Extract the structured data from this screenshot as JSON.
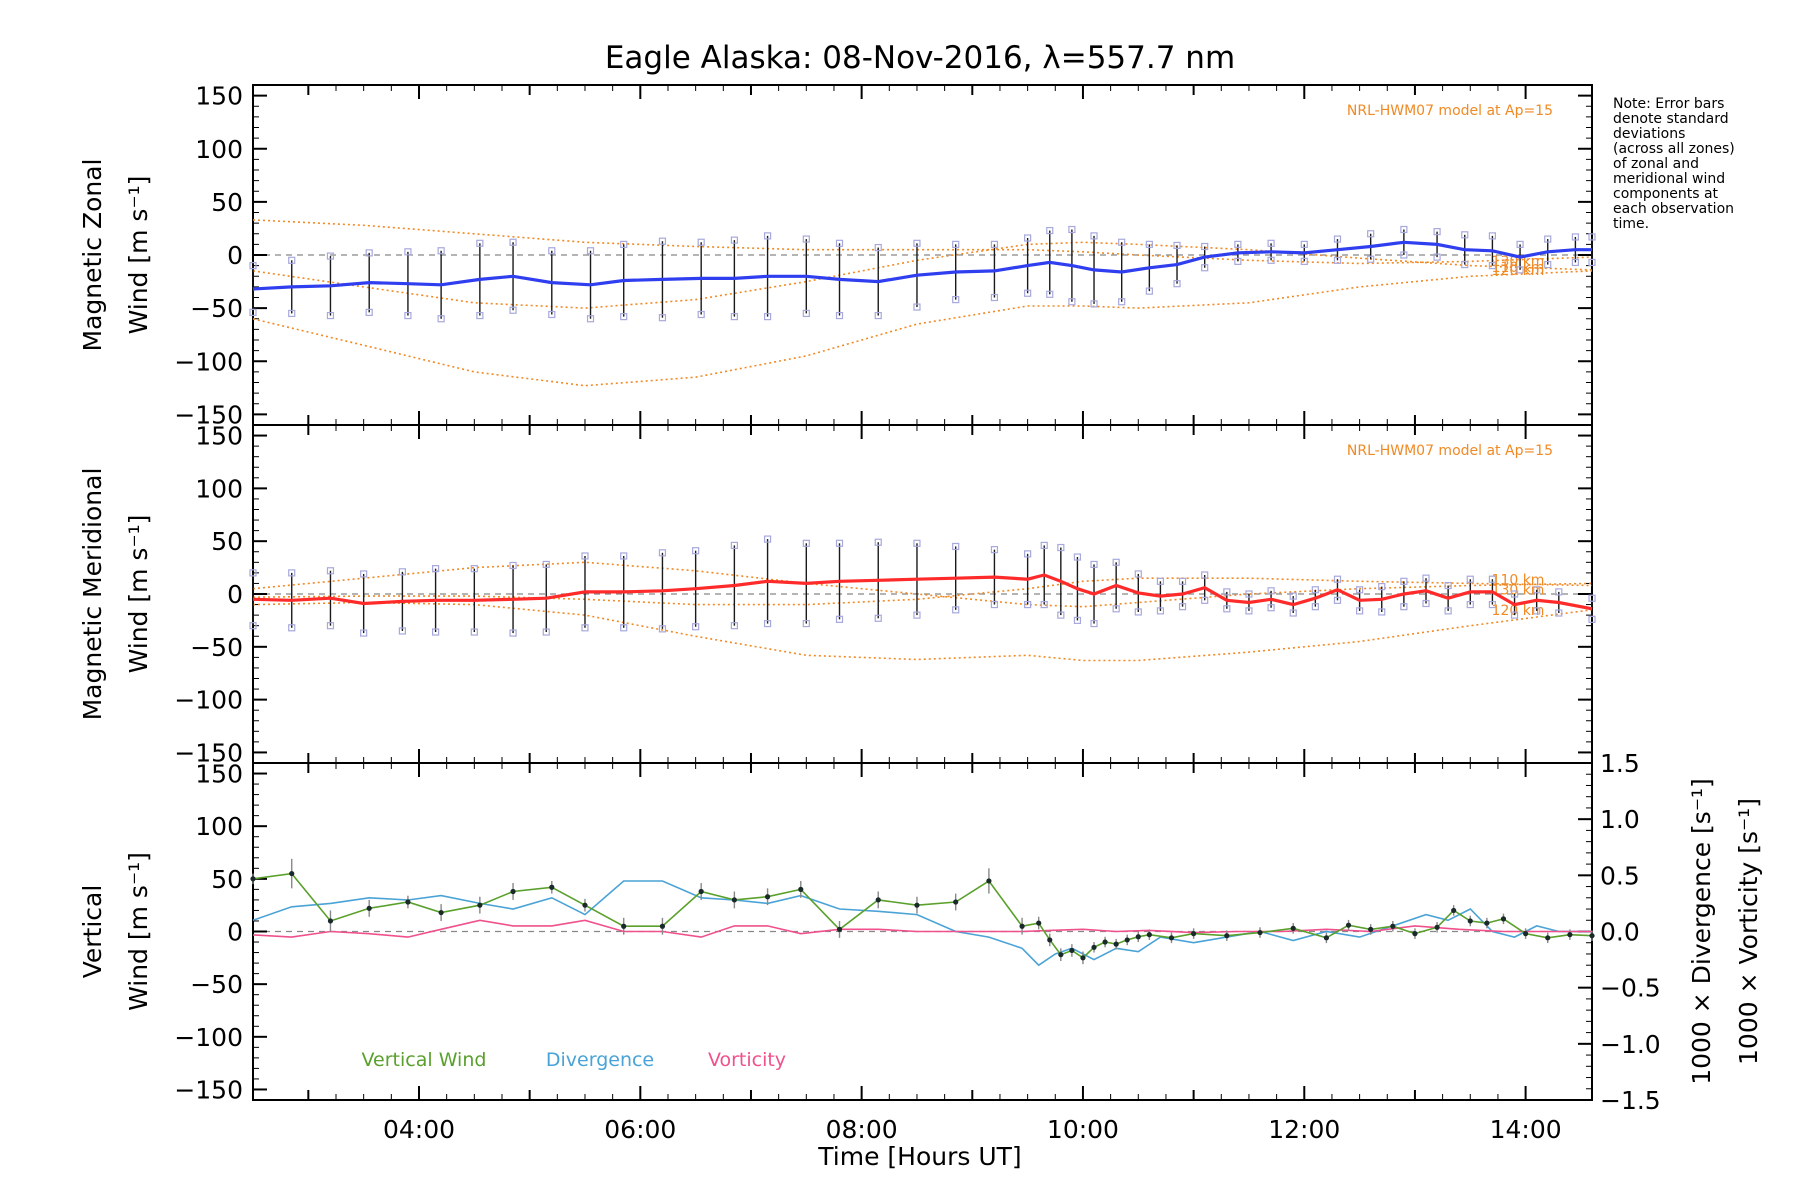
{
  "chart_data": {
    "type": "line",
    "title": "Eagle Alaska: 08-Nov-2016, λ=557.7 nm",
    "xlabel": "Time [Hours UT]",
    "x_unit": "hours UT",
    "xlim": [
      2.5,
      14.6
    ],
    "xticks": [
      4,
      6,
      8,
      10,
      12,
      14
    ],
    "xtick_labels": [
      "04:00",
      "06:00",
      "08:00",
      "10:00",
      "12:00",
      "14:00"
    ],
    "ylim": [
      -160,
      160
    ],
    "yticks": [
      -150,
      -100,
      -50,
      0,
      50,
      100,
      150
    ],
    "ytick_labels": [
      "−150",
      "−100",
      "−50",
      "0",
      "50",
      "100",
      "150"
    ],
    "note": [
      "Note: Error bars",
      "denote standard",
      "deviations",
      "(across all zones)",
      "of zonal and",
      "meridional wind",
      "components at",
      "each observation",
      "time."
    ],
    "colors": {
      "zonal": "#2f3ff0",
      "meridional": "#ff2a2a",
      "vertical": "#5aa02c",
      "divergence": "#4aa3d6",
      "vorticity": "#f0508c",
      "model": "#f08a25",
      "scatter": "#a7a8dc",
      "zero": "#888888"
    },
    "panels": [
      {
        "name": "zonal",
        "ylabel_top": "Magnetic Zonal",
        "ylabel_bottom": "Wind [m s⁻¹]",
        "model_label": "NRL-HWM07 model at Ap=15",
        "model_altitudes": [
          "110 km",
          "120 km",
          "130 km"
        ],
        "model_curves": [
          {
            "x": [
              2.5,
              3.5,
              4.5,
              5.5,
              6.5,
              7.5,
              8.5,
              9.5,
              10.0,
              10.5,
              11.5,
              12.5,
              13.5,
              14.6
            ],
            "y": [
              -60,
              -85,
              -110,
              -123,
              -115,
              -95,
              -65,
              -48,
              -48,
              -50,
              -45,
              -30,
              -20,
              -15
            ]
          },
          {
            "x": [
              2.5,
              3.5,
              4.5,
              5.5,
              6.5,
              7.5,
              8.5,
              9.5,
              10.0,
              10.5,
              11.5,
              12.5,
              13.5,
              14.6
            ],
            "y": [
              -15,
              -30,
              -45,
              -50,
              -42,
              -25,
              -5,
              10,
              12,
              10,
              5,
              -3,
              -10,
              -14
            ]
          },
          {
            "x": [
              2.5,
              3.5,
              4.5,
              5.5,
              6.5,
              7.5,
              8.5,
              9.5,
              10.0,
              10.5,
              11.5,
              12.5,
              13.5,
              14.6
            ],
            "y": [
              33,
              28,
              20,
              12,
              8,
              5,
              5,
              5,
              3,
              0,
              -5,
              -8,
              -6,
              -2
            ]
          }
        ],
        "x": [
          2.5,
          2.85,
          3.2,
          3.55,
          3.9,
          4.2,
          4.55,
          4.85,
          5.2,
          5.55,
          5.85,
          6.2,
          6.55,
          6.85,
          7.15,
          7.5,
          7.8,
          8.15,
          8.5,
          8.85,
          9.2,
          9.5,
          9.7,
          9.9,
          10.1,
          10.35,
          10.6,
          10.85,
          11.1,
          11.4,
          11.7,
          12.0,
          12.3,
          12.6,
          12.9,
          13.2,
          13.45,
          13.7,
          13.95,
          14.2,
          14.45,
          14.6
        ],
        "y": [
          -32,
          -30,
          -29,
          -26,
          -27,
          -28,
          -23,
          -20,
          -26,
          -28,
          -24,
          -23,
          -22,
          -22,
          -20,
          -20,
          -23,
          -25,
          -19,
          -16,
          -15,
          -10,
          -7,
          -10,
          -14,
          -16,
          -12,
          -9,
          -2,
          2,
          3,
          2,
          5,
          8,
          12,
          10,
          5,
          4,
          -2,
          3,
          5,
          5
        ],
        "err": [
          22,
          25,
          28,
          28,
          30,
          32,
          34,
          32,
          30,
          32,
          34,
          36,
          34,
          36,
          38,
          35,
          34,
          32,
          30,
          26,
          25,
          26,
          30,
          34,
          32,
          28,
          22,
          18,
          10,
          8,
          8,
          8,
          10,
          12,
          12,
          12,
          14,
          14,
          12,
          12,
          12,
          12
        ]
      },
      {
        "name": "meridional",
        "ylabel_top": "Magnetic Meridional",
        "ylabel_bottom": "Wind [m s⁻¹]",
        "model_label": "NRL-HWM07 model at Ap=15",
        "model_altitudes": [
          "110 km",
          "120 km",
          "130 km"
        ],
        "model_curves": [
          {
            "x": [
              2.5,
              3.5,
              4.5,
              5.5,
              6.5,
              7.5,
              8.5,
              9.5,
              10.0,
              10.5,
              11.5,
              12.5,
              13.5,
              14.6
            ],
            "y": [
              5,
              15,
              25,
              30,
              22,
              10,
              0,
              -10,
              -12,
              -8,
              0,
              5,
              8,
              10
            ]
          },
          {
            "x": [
              2.5,
              3.5,
              4.5,
              5.5,
              6.5,
              7.5,
              8.5,
              9.5,
              10.0,
              10.5,
              11.5,
              12.5,
              13.5,
              14.6
            ],
            "y": [
              -10,
              -8,
              -10,
              -20,
              -40,
              -58,
              -62,
              -58,
              -63,
              -63,
              -55,
              -45,
              -30,
              -15
            ]
          },
          {
            "x": [
              2.5,
              3.5,
              4.5,
              5.5,
              6.5,
              7.5,
              8.5,
              9.5,
              10.0,
              10.5,
              11.5,
              12.5,
              13.5,
              14.6
            ],
            "y": [
              -3,
              -2,
              -2,
              -5,
              -10,
              -10,
              -5,
              5,
              12,
              15,
              15,
              12,
              10,
              8
            ]
          }
        ],
        "x": [
          2.5,
          2.85,
          3.2,
          3.5,
          3.85,
          4.15,
          4.5,
          4.85,
          5.15,
          5.5,
          5.85,
          6.2,
          6.5,
          6.85,
          7.15,
          7.5,
          7.8,
          8.15,
          8.5,
          8.85,
          9.2,
          9.5,
          9.65,
          9.8,
          9.95,
          10.1,
          10.3,
          10.5,
          10.7,
          10.9,
          11.1,
          11.3,
          11.5,
          11.7,
          11.9,
          12.1,
          12.3,
          12.5,
          12.7,
          12.9,
          13.1,
          13.3,
          13.5,
          13.7,
          13.9,
          14.1,
          14.3,
          14.6
        ],
        "y": [
          -5,
          -6,
          -4,
          -9,
          -7,
          -6,
          -6,
          -5,
          -4,
          2,
          2,
          3,
          5,
          8,
          12,
          10,
          12,
          13,
          14,
          15,
          16,
          14,
          18,
          12,
          5,
          0,
          8,
          1,
          -2,
          0,
          6,
          -6,
          -8,
          -5,
          -10,
          -4,
          4,
          -6,
          -5,
          0,
          3,
          -4,
          2,
          2,
          -10,
          -6,
          -8,
          -14
        ],
        "err": [
          25,
          26,
          26,
          28,
          28,
          30,
          30,
          32,
          32,
          34,
          34,
          36,
          36,
          38,
          40,
          38,
          36,
          36,
          34,
          30,
          26,
          24,
          28,
          32,
          30,
          28,
          22,
          18,
          14,
          12,
          12,
          8,
          8,
          8,
          8,
          8,
          10,
          10,
          12,
          12,
          12,
          12,
          12,
          12,
          10,
          10,
          10,
          10
        ]
      },
      {
        "name": "vertical",
        "ylabel_top": "Vertical",
        "ylabel_bottom": "Wind [m s⁻¹]",
        "y2lim": [
          -1.5,
          1.5
        ],
        "y2ticks": [
          -1.5,
          -1.0,
          -0.5,
          0.0,
          0.5,
          1.0,
          1.5
        ],
        "y2tick_labels": [
          "−1.5",
          "−1.0",
          "−0.5",
          "0.0",
          "0.5",
          "1.0",
          "1.5"
        ],
        "y2label_divergence": "1000 × Divergence [s⁻¹]",
        "y2label_vorticity": "1000 × Vorticity [s⁻¹]",
        "legend": [
          "Vertical Wind",
          "Divergence",
          "Vorticity"
        ],
        "series": [
          {
            "name": "Vertical Wind",
            "x": [
              2.5,
              2.85,
              3.2,
              3.55,
              3.9,
              4.2,
              4.55,
              4.85,
              5.2,
              5.5,
              5.85,
              6.2,
              6.55,
              6.85,
              7.15,
              7.45,
              7.8,
              8.15,
              8.5,
              8.85,
              9.15,
              9.45,
              9.6,
              9.7,
              9.8,
              9.9,
              10.0,
              10.1,
              10.2,
              10.3,
              10.4,
              10.5,
              10.6,
              10.8,
              11.0,
              11.3,
              11.6,
              11.9,
              12.2,
              12.4,
              12.6,
              12.8,
              13.0,
              13.2,
              13.35,
              13.5,
              13.65,
              13.8,
              14.0,
              14.2,
              14.4,
              14.6
            ],
            "y": [
              50,
              55,
              10,
              22,
              28,
              18,
              25,
              38,
              42,
              25,
              5,
              5,
              38,
              30,
              33,
              40,
              2,
              30,
              25,
              28,
              48,
              5,
              8,
              -8,
              -22,
              -18,
              -25,
              -15,
              -10,
              -12,
              -8,
              -5,
              -3,
              -6,
              -2,
              -4,
              -1,
              3,
              -6,
              6,
              2,
              5,
              -2,
              4,
              20,
              10,
              8,
              12,
              -2,
              -6,
              -3,
              -4
            ],
            "err": [
              5,
              14,
              10,
              8,
              6,
              8,
              8,
              8,
              6,
              6,
              8,
              8,
              8,
              8,
              8,
              8,
              8,
              8,
              8,
              8,
              12,
              8,
              6,
              6,
              6,
              6,
              6,
              5,
              5,
              5,
              5,
              5,
              5,
              5,
              5,
              5,
              5,
              5,
              5,
              5,
              5,
              5,
              5,
              5,
              5,
              5,
              5,
              5,
              5,
              5,
              5,
              5
            ]
          },
          {
            "name": "Divergence",
            "x": [
              2.5,
              2.85,
              3.2,
              3.55,
              3.9,
              4.2,
              4.55,
              4.85,
              5.2,
              5.5,
              5.85,
              6.2,
              6.55,
              6.85,
              7.15,
              7.45,
              7.8,
              8.15,
              8.5,
              8.85,
              9.15,
              9.45,
              9.6,
              9.75,
              9.9,
              10.1,
              10.3,
              10.5,
              10.7,
              11.0,
              11.3,
              11.6,
              11.9,
              12.2,
              12.5,
              12.8,
              13.1,
              13.3,
              13.5,
              13.7,
              13.9,
              14.1,
              14.3,
              14.6
            ],
            "y": [
              0.1,
              0.22,
              0.25,
              0.3,
              0.28,
              0.32,
              0.25,
              0.2,
              0.3,
              0.15,
              0.45,
              0.45,
              0.3,
              0.28,
              0.25,
              0.32,
              0.2,
              0.18,
              0.15,
              0.0,
              -0.05,
              -0.15,
              -0.3,
              -0.2,
              -0.15,
              -0.25,
              -0.15,
              -0.18,
              -0.05,
              -0.1,
              -0.05,
              0.0,
              -0.08,
              0.0,
              -0.05,
              0.05,
              0.15,
              0.1,
              0.2,
              0.0,
              -0.05,
              0.05,
              0.0,
              0.0
            ]
          },
          {
            "name": "Vorticity",
            "x": [
              2.5,
              2.85,
              3.2,
              3.55,
              3.9,
              4.2,
              4.55,
              4.85,
              5.2,
              5.5,
              5.85,
              6.2,
              6.55,
              6.85,
              7.15,
              7.45,
              7.8,
              8.15,
              8.5,
              8.85,
              9.15,
              9.45,
              9.7,
              10.0,
              10.3,
              10.6,
              11.0,
              11.4,
              11.8,
              12.2,
              12.6,
              13.0,
              13.4,
              13.8,
              14.2,
              14.6
            ],
            "y": [
              -0.03,
              -0.05,
              0.0,
              -0.02,
              -0.05,
              0.02,
              0.1,
              0.05,
              0.05,
              0.1,
              0.0,
              0.0,
              -0.05,
              0.05,
              0.05,
              -0.02,
              0.02,
              0.02,
              0.0,
              0.0,
              0.0,
              0.0,
              0.01,
              0.02,
              0.0,
              0.01,
              -0.01,
              0.0,
              0.0,
              0.02,
              0.0,
              0.05,
              0.02,
              0.0,
              0.0,
              0.0
            ]
          }
        ]
      }
    ]
  }
}
